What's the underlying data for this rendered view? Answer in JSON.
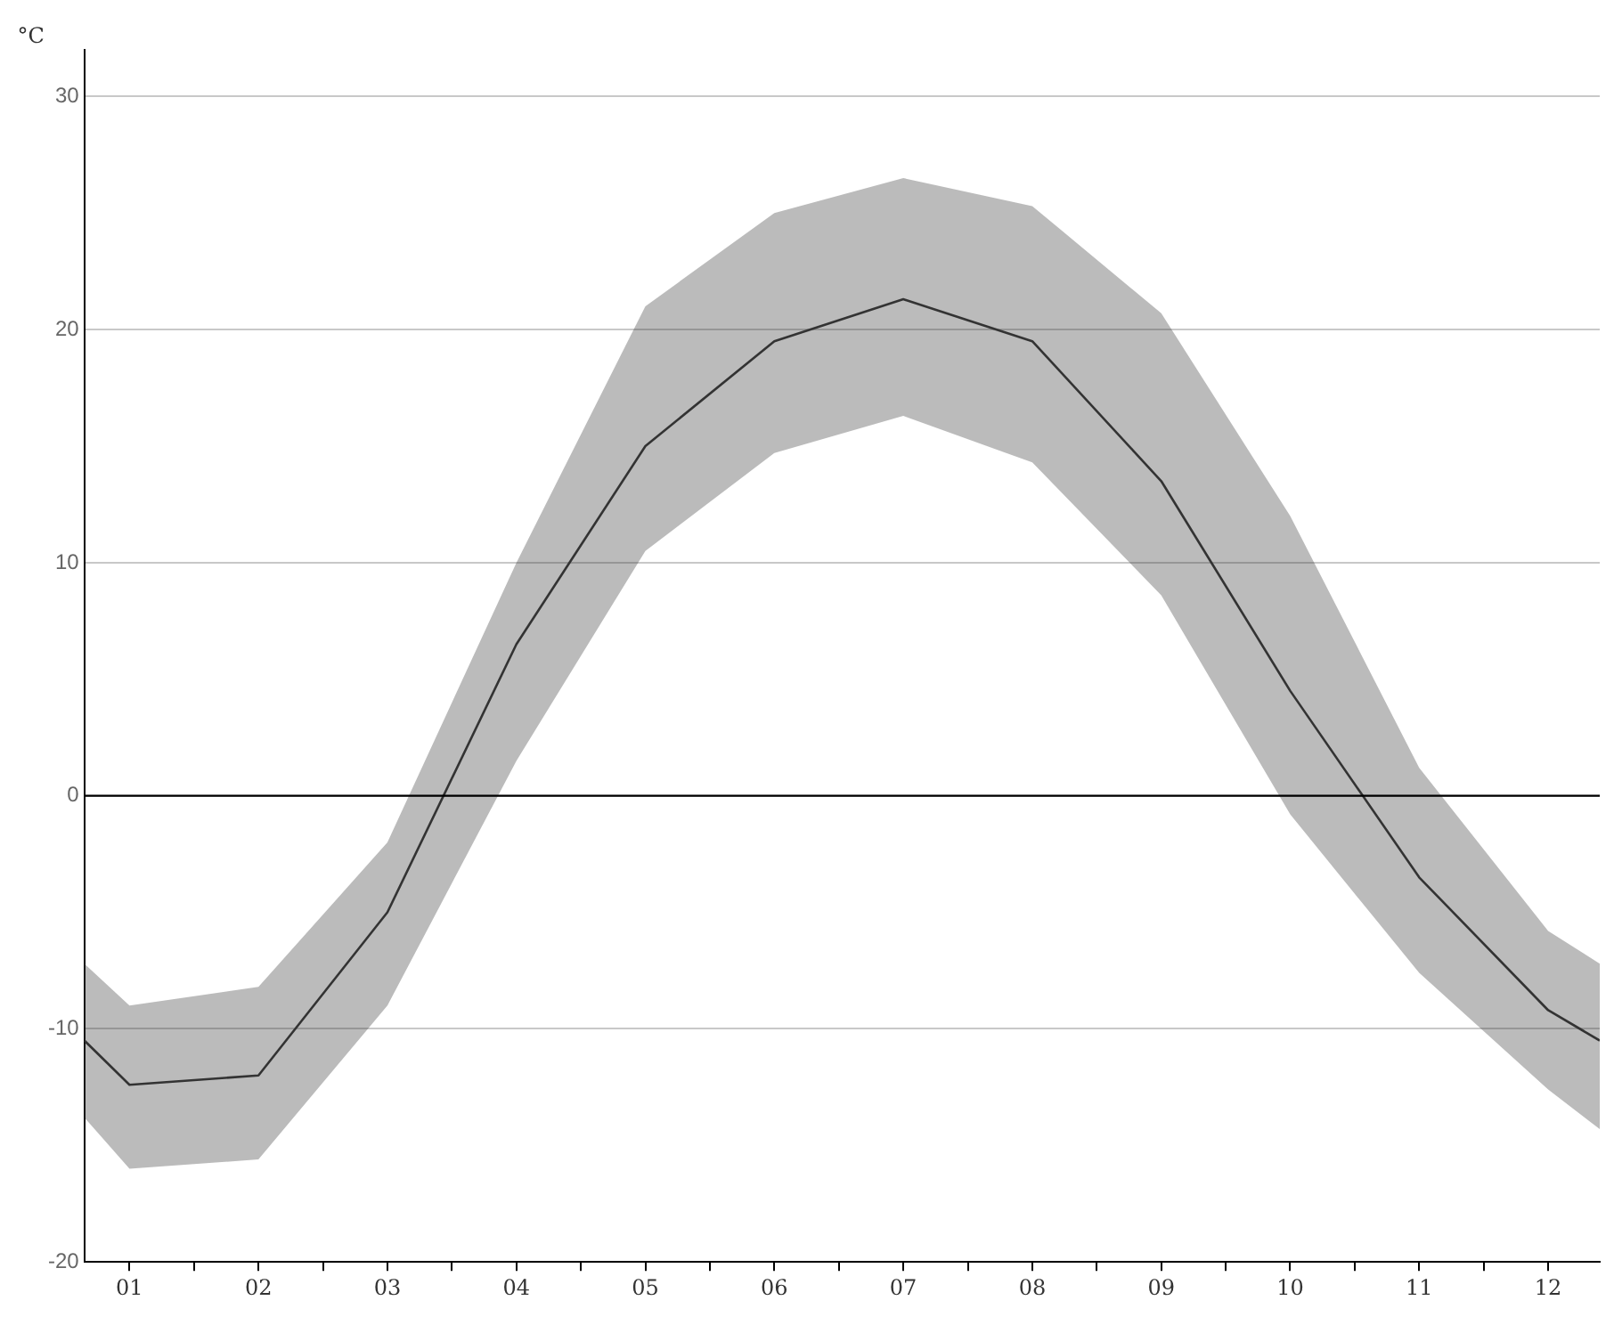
{
  "chart_data": {
    "type": "line",
    "ylabel": "°C",
    "x": [
      0.65,
      1,
      2,
      3,
      4,
      5,
      6,
      7,
      8,
      9,
      10,
      11,
      12,
      12.4
    ],
    "series": [
      {
        "color": "#333333",
        "values": [
          -10.5,
          -12.4,
          -12,
          -5,
          6.5,
          15,
          19.5,
          21.3,
          19.5,
          13.5,
          4.5,
          -3.5,
          -9.2,
          -10.5
        ],
        "upper": [
          -7.2,
          -9,
          -8.2,
          -2,
          10,
          21,
          25,
          26.5,
          25.3,
          20.7,
          12,
          1.2,
          -5.8,
          -7.2
        ],
        "lower": [
          -13.8,
          -16,
          -15.6,
          -9,
          1.5,
          10.5,
          14.7,
          16.3,
          14.3,
          8.6,
          -0.8,
          -7.6,
          -12.6,
          -14.3
        ]
      }
    ],
    "xlim": [
      0.65,
      12.4
    ],
    "ylim": [
      -20,
      32
    ],
    "xticks": [
      {
        "value": 1,
        "label": "01"
      },
      {
        "value": 1.5,
        "label": null
      },
      {
        "value": 2,
        "label": "02"
      },
      {
        "value": 2.5,
        "label": null
      },
      {
        "value": 3,
        "label": "03"
      },
      {
        "value": 3.5,
        "label": null
      },
      {
        "value": 4,
        "label": "04"
      },
      {
        "value": 4.5,
        "label": null
      },
      {
        "value": 5,
        "label": "05"
      },
      {
        "value": 5.5,
        "label": null
      },
      {
        "value": 6,
        "label": "06"
      },
      {
        "value": 6.5,
        "label": null
      },
      {
        "value": 7,
        "label": "07"
      },
      {
        "value": 7.5,
        "label": null
      },
      {
        "value": 8,
        "label": "08"
      },
      {
        "value": 8.5,
        "label": null
      },
      {
        "value": 9,
        "label": "09"
      },
      {
        "value": 9.5,
        "label": null
      },
      {
        "value": 10,
        "label": "10"
      },
      {
        "value": 10.5,
        "label": null
      },
      {
        "value": 11,
        "label": "11"
      },
      {
        "value": 11.5,
        "label": null
      },
      {
        "value": 12,
        "label": "12"
      }
    ],
    "yticks": [
      -20,
      -10,
      0,
      10,
      20,
      30
    ],
    "grid": "y",
    "legend": false,
    "marker": "none",
    "line_style": "solid",
    "ref_lines": [
      {
        "axis": "y",
        "value": 0,
        "color": "#000000"
      }
    ]
  }
}
